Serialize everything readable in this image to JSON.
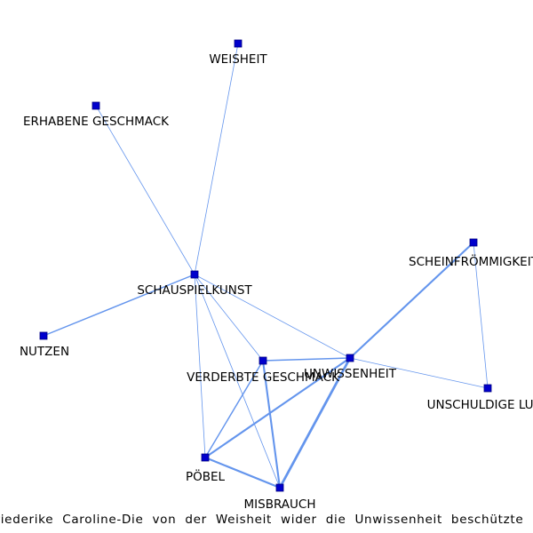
{
  "caption": "Friederike Caroline-Die von der Weisheit wider die Unwissenheit beschützte Schauspielkunst",
  "colors": {
    "edge": "#6495ED",
    "node_fill": "#0000CD",
    "node_stroke": "#000080",
    "label": "#000000"
  },
  "nodes": [
    {
      "id": "weisheit",
      "label": "WEISHEIT"
    },
    {
      "id": "erhabene",
      "label": "ERHABENE GESCHMACK"
    },
    {
      "id": "schauspielkunst",
      "label": "SCHAUSPIELKUNST"
    },
    {
      "id": "nutzen",
      "label": "NUTZEN"
    },
    {
      "id": "scheinfroemmigkeit",
      "label": "SCHEINFRÖMMIGKEIT"
    },
    {
      "id": "unwissenheit",
      "label": "UNWISSENHEIT"
    },
    {
      "id": "verderbte",
      "label": "VERDERBTE GESCHMACK"
    },
    {
      "id": "unschuldige",
      "label": "UNSCHULDIGE LUST"
    },
    {
      "id": "poebel",
      "label": "PÖBEL"
    },
    {
      "id": "misbrauch",
      "label": "MISBRAUCH"
    }
  ],
  "edges": [
    {
      "source": "schauspielkunst",
      "target": "weisheit",
      "weight": 1
    },
    {
      "source": "schauspielkunst",
      "target": "erhabene",
      "weight": 1
    },
    {
      "source": "schauspielkunst",
      "target": "nutzen",
      "weight": 2
    },
    {
      "source": "schauspielkunst",
      "target": "unwissenheit",
      "weight": 1
    },
    {
      "source": "schauspielkunst",
      "target": "verderbte",
      "weight": 1
    },
    {
      "source": "schauspielkunst",
      "target": "poebel",
      "weight": 1
    },
    {
      "source": "schauspielkunst",
      "target": "misbrauch",
      "weight": 1
    },
    {
      "source": "scheinfroemmigkeit",
      "target": "unwissenheit",
      "weight": 3
    },
    {
      "source": "scheinfroemmigkeit",
      "target": "unschuldige",
      "weight": 1
    },
    {
      "source": "unwissenheit",
      "target": "unschuldige",
      "weight": 1
    },
    {
      "source": "unwissenheit",
      "target": "verderbte",
      "weight": 2
    },
    {
      "source": "unwissenheit",
      "target": "poebel",
      "weight": 3
    },
    {
      "source": "unwissenheit",
      "target": "misbrauch",
      "weight": 4
    },
    {
      "source": "verderbte",
      "target": "poebel",
      "weight": 2
    },
    {
      "source": "verderbte",
      "target": "misbrauch",
      "weight": 3
    },
    {
      "source": "poebel",
      "target": "misbrauch",
      "weight": 3
    }
  ]
}
